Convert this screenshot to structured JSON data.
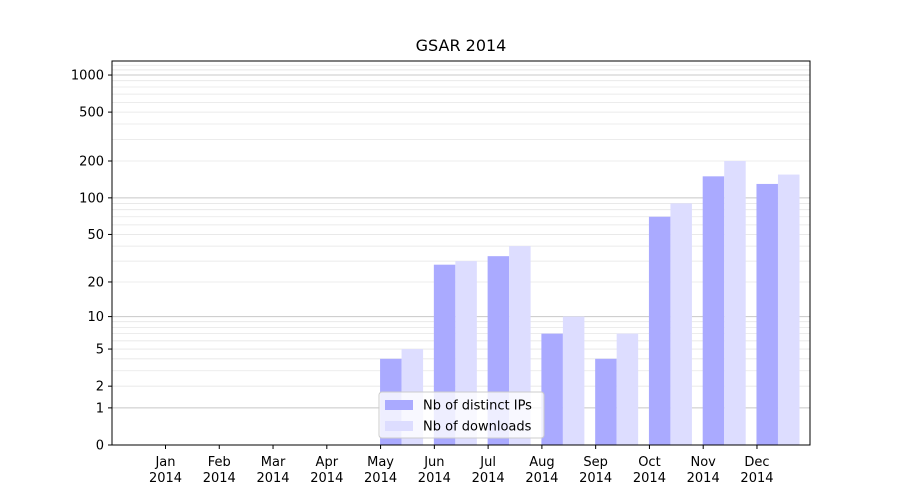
{
  "chart_data": {
    "type": "bar",
    "title": "GSAR 2014",
    "xlabel": "",
    "ylabel": "",
    "yscale": "symlog",
    "ylim": [
      0,
      1300
    ],
    "yticks": [
      0,
      1,
      2,
      5,
      10,
      20,
      50,
      100,
      200,
      500,
      1000
    ],
    "grid": true,
    "legend_position": "lower-center",
    "categories": [
      "Jan\n2014",
      "Feb\n2014",
      "Mar\n2014",
      "Apr\n2014",
      "May\n2014",
      "Jun\n2014",
      "Jul\n2014",
      "Aug\n2014",
      "Sep\n2014",
      "Oct\n2014",
      "Nov\n2014",
      "Dec\n2014"
    ],
    "series": [
      {
        "name": "Nb of distinct IPs",
        "color": "#aaaaff",
        "values": [
          0,
          0,
          0,
          0,
          4,
          28,
          33,
          7,
          4,
          70,
          150,
          130
        ]
      },
      {
        "name": "Nb of downloads",
        "color": "#ddddff",
        "values": [
          0,
          0,
          0,
          0,
          5,
          30,
          40,
          10,
          7,
          90,
          200,
          155
        ]
      }
    ]
  }
}
